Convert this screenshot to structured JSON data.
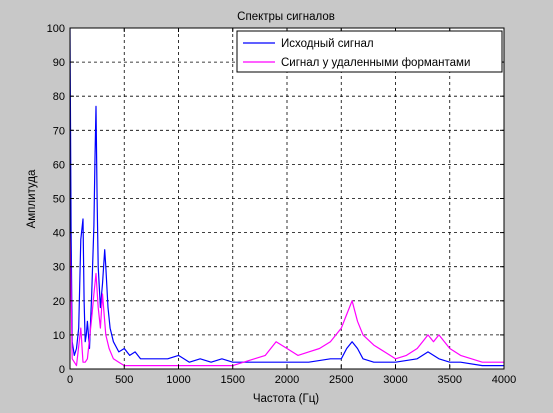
{
  "chart_data": {
    "type": "line",
    "title": "Спектры сигналов",
    "xlabel": "Частота (Гц)",
    "ylabel": "Амплитуда",
    "xlim": [
      0,
      4000
    ],
    "ylim": [
      0,
      100
    ],
    "xticks": [
      0,
      500,
      1000,
      1500,
      2000,
      2500,
      3000,
      3500,
      4000
    ],
    "yticks": [
      0,
      10,
      20,
      30,
      40,
      50,
      60,
      70,
      80,
      90,
      100
    ],
    "grid": true,
    "grid_style": "dashed",
    "legend_position": "top-right",
    "background": "#c8c8c8",
    "axes_background": "#ffffff",
    "series": [
      {
        "name": "Исходный сигнал",
        "color": "#0000ff",
        "x": [
          0,
          10,
          20,
          40,
          60,
          80,
          100,
          120,
          130,
          140,
          150,
          160,
          180,
          200,
          220,
          230,
          240,
          250,
          260,
          280,
          300,
          320,
          330,
          350,
          370,
          400,
          450,
          500,
          550,
          600,
          650,
          700,
          800,
          900,
          1000,
          1100,
          1200,
          1300,
          1400,
          1500,
          1600,
          1800,
          2000,
          2200,
          2400,
          2500,
          2550,
          2600,
          2650,
          2700,
          2800,
          3000,
          3200,
          3300,
          3400,
          3500,
          3600,
          3800,
          4000
        ],
        "y": [
          100,
          40,
          8,
          4,
          6,
          12,
          38,
          44,
          20,
          8,
          10,
          14,
          6,
          22,
          42,
          62,
          77,
          50,
          30,
          18,
          25,
          35,
          30,
          18,
          12,
          8,
          5,
          6,
          4,
          5,
          3,
          3,
          3,
          3,
          4,
          2,
          3,
          2,
          3,
          2,
          2,
          2,
          2,
          2,
          3,
          3,
          6,
          8,
          6,
          3,
          2,
          2,
          3,
          5,
          3,
          2,
          2,
          1,
          1
        ]
      },
      {
        "name": "Сигнал у удаленными формантами",
        "color": "#ff00ff",
        "x": [
          0,
          20,
          60,
          100,
          120,
          140,
          160,
          200,
          220,
          240,
          260,
          280,
          300,
          330,
          360,
          400,
          450,
          500,
          600,
          800,
          1000,
          1200,
          1400,
          1500,
          1600,
          1700,
          1800,
          1900,
          2000,
          2100,
          2200,
          2300,
          2400,
          2500,
          2550,
          2600,
          2650,
          2700,
          2800,
          2900,
          3000,
          3100,
          3200,
          3250,
          3300,
          3350,
          3400,
          3500,
          3600,
          3700,
          3800,
          3900,
          4000
        ],
        "y": [
          40,
          3,
          1,
          12,
          2,
          2,
          3,
          15,
          22,
          28,
          18,
          12,
          22,
          10,
          6,
          3,
          2,
          1,
          1,
          1,
          1,
          1,
          1,
          1,
          2,
          3,
          4,
          8,
          6,
          4,
          5,
          6,
          8,
          12,
          16,
          20,
          14,
          10,
          7,
          5,
          3,
          4,
          6,
          8,
          10,
          8,
          10,
          6,
          4,
          3,
          2,
          2,
          2
        ]
      }
    ]
  }
}
